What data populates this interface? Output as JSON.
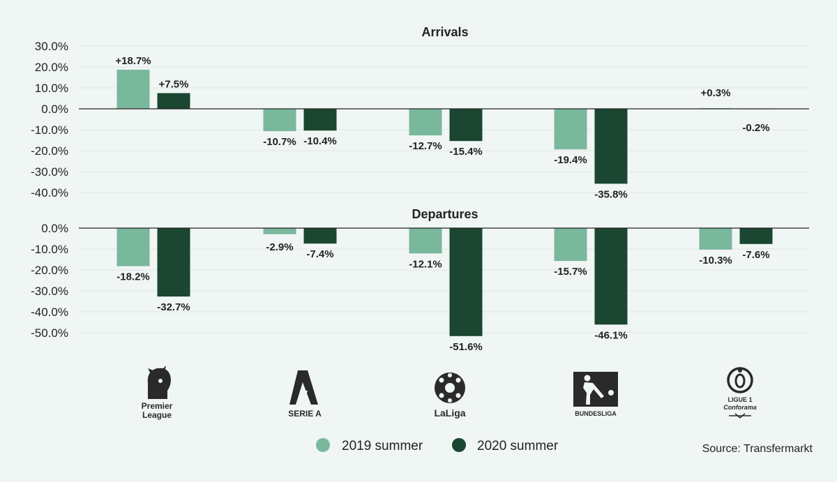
{
  "chart_data": [
    {
      "type": "bar",
      "title": "Arrivals",
      "categories": [
        "Premier League",
        "Serie A",
        "LaLiga",
        "Bundesliga",
        "Ligue 1 Conforama"
      ],
      "series": [
        {
          "name": "2019 summer",
          "values": [
            18.7,
            -10.7,
            -12.7,
            -19.4,
            0.3
          ],
          "labels": [
            "+18.7%",
            "-10.7%",
            "-12.7%",
            "-19.4%",
            "+0.3%"
          ]
        },
        {
          "name": "2020 summer",
          "values": [
            7.5,
            -10.4,
            -15.4,
            -35.8,
            -0.2
          ],
          "labels": [
            "+7.5%",
            "-10.4%",
            "-15.4%",
            "-35.8%",
            "-0.2%"
          ]
        }
      ],
      "ylim": [
        -40,
        30
      ],
      "yticks": [
        30,
        20,
        10,
        0,
        -10,
        -20,
        -30,
        -40
      ],
      "ytick_labels": [
        "30.0%",
        "20.0%",
        "10.0%",
        "0.0%",
        "-10.0%",
        "-20.0%",
        "-30.0%",
        "-40.0%"
      ]
    },
    {
      "type": "bar",
      "title": "Departures",
      "categories": [
        "Premier League",
        "Serie A",
        "LaLiga",
        "Bundesliga",
        "Ligue 1 Conforama"
      ],
      "series": [
        {
          "name": "2019 summer",
          "values": [
            -18.2,
            -2.9,
            -12.1,
            -15.7,
            -10.3
          ],
          "labels": [
            "-18.2%",
            "-2.9%",
            "-12.1%",
            "-15.7%",
            "-10.3%"
          ]
        },
        {
          "name": "2020 summer",
          "values": [
            -32.7,
            -7.4,
            -51.6,
            -46.1,
            -7.6
          ],
          "labels": [
            "-32.7%",
            "-7.4%",
            "-51.6%",
            "-46.1%",
            "-7.6%"
          ]
        }
      ],
      "ylim": [
        -50,
        0
      ],
      "yticks": [
        0,
        -10,
        -20,
        -30,
        -40,
        -50
      ],
      "ytick_labels": [
        "0.0%",
        "-10.0%",
        "-20.0%",
        "-30.0%",
        "-40.0%",
        "-50.0%"
      ]
    }
  ],
  "colors": {
    "series_2019": "#7ab89d",
    "series_2020": "#1b4632"
  },
  "logos": {
    "premier_league": [
      "Premier",
      "League"
    ],
    "serie_a": "SERIE A",
    "laliga": "LaLiga",
    "bundesliga": "BUNDESLIGA",
    "ligue1": [
      "LIGUE 1",
      "Conforama"
    ]
  },
  "legend": {
    "items": [
      "2019 summer",
      "2020 summer"
    ]
  },
  "source": "Source: Transfermarkt"
}
